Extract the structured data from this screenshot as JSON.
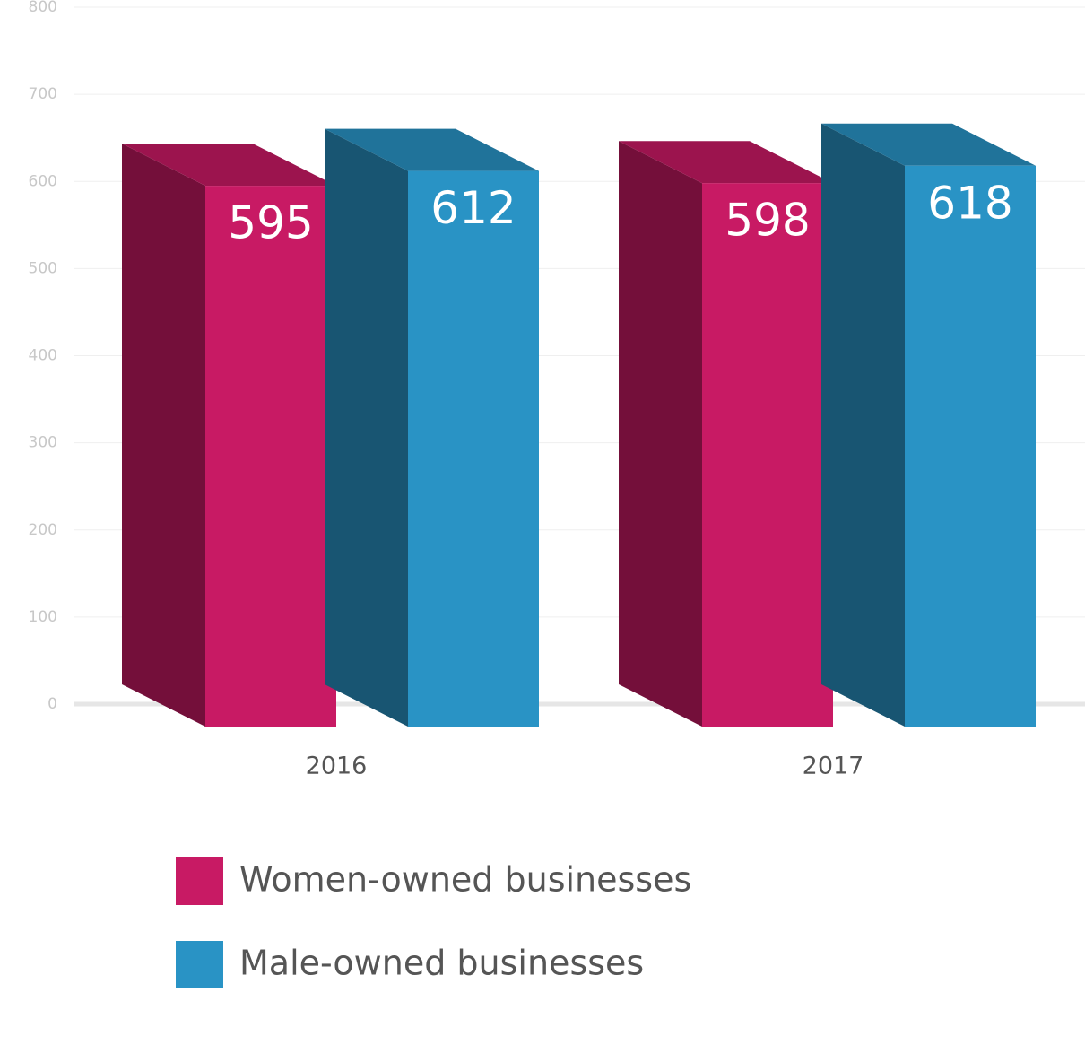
{
  "chart_data": {
    "type": "bar3d",
    "categories": [
      "2016",
      "2017"
    ],
    "series": [
      {
        "name": "Women-owned businesses",
        "color": "#c81a64",
        "values": [
          595,
          598
        ]
      },
      {
        "name": "Male-owned businesses",
        "color": "#2993c5",
        "values": [
          612,
          618
        ]
      }
    ],
    "ylim": [
      0,
      800
    ],
    "yticks": [
      0,
      100,
      200,
      300,
      400,
      500,
      600,
      700,
      800
    ],
    "grid": true
  }
}
